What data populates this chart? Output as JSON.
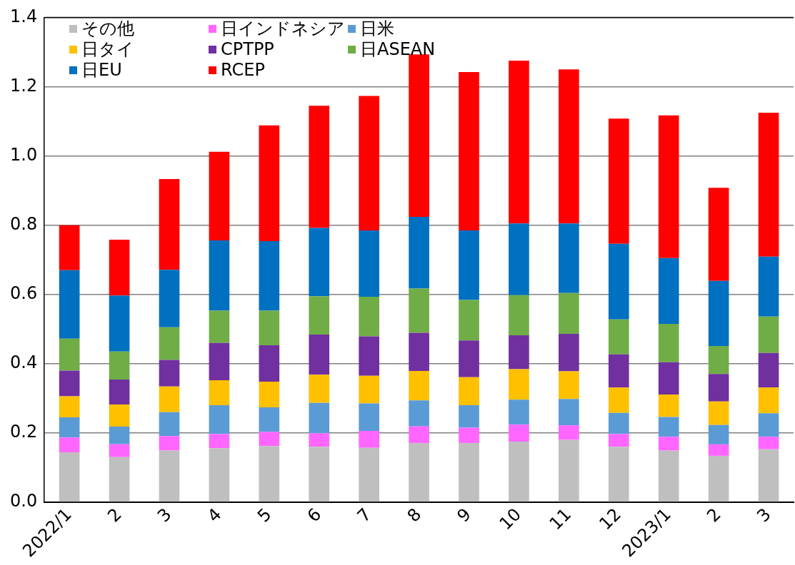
{
  "chart_data": {
    "type": "bar",
    "stacked": true,
    "categories": [
      "2022/1",
      "2",
      "3",
      "4",
      "5",
      "6",
      "7",
      "8",
      "9",
      "10",
      "11",
      "12",
      "2023/1",
      "2",
      "3"
    ],
    "series": [
      {
        "name": "その他",
        "color": "#bfbfbf",
        "values": [
          0.144,
          0.13,
          0.149,
          0.156,
          0.162,
          0.16,
          0.157,
          0.171,
          0.171,
          0.175,
          0.18,
          0.16,
          0.149,
          0.134,
          0.153
        ]
      },
      {
        "name": "日インドネシア",
        "color": "#ff66ff",
        "values": [
          0.043,
          0.037,
          0.042,
          0.041,
          0.041,
          0.039,
          0.049,
          0.048,
          0.044,
          0.049,
          0.042,
          0.037,
          0.04,
          0.033,
          0.036
        ]
      },
      {
        "name": "日米",
        "color": "#5b9bd5",
        "values": [
          0.058,
          0.051,
          0.069,
          0.083,
          0.071,
          0.088,
          0.079,
          0.075,
          0.065,
          0.072,
          0.076,
          0.061,
          0.057,
          0.056,
          0.068
        ]
      },
      {
        "name": "日タイ",
        "color": "#ffc000",
        "values": [
          0.061,
          0.064,
          0.074,
          0.072,
          0.074,
          0.081,
          0.08,
          0.085,
          0.081,
          0.088,
          0.08,
          0.073,
          0.065,
          0.068,
          0.074
        ]
      },
      {
        "name": "CPTPP",
        "color": "#7030a0",
        "values": [
          0.074,
          0.072,
          0.077,
          0.108,
          0.105,
          0.116,
          0.114,
          0.11,
          0.106,
          0.098,
          0.108,
          0.096,
          0.093,
          0.079,
          0.1
        ]
      },
      {
        "name": "日ASEAN",
        "color": "#70ad47",
        "values": [
          0.092,
          0.081,
          0.094,
          0.093,
          0.1,
          0.111,
          0.114,
          0.128,
          0.117,
          0.116,
          0.118,
          0.101,
          0.111,
          0.081,
          0.105
        ]
      },
      {
        "name": "日EU",
        "color": "#0070c0",
        "values": [
          0.198,
          0.162,
          0.166,
          0.203,
          0.201,
          0.197,
          0.192,
          0.207,
          0.201,
          0.207,
          0.201,
          0.218,
          0.19,
          0.188,
          0.173
        ]
      },
      {
        "name": "RCEP",
        "color": "#ff0000",
        "values": [
          0.13,
          0.161,
          0.262,
          0.256,
          0.334,
          0.353,
          0.388,
          0.469,
          0.457,
          0.47,
          0.445,
          0.362,
          0.412,
          0.269,
          0.416
        ]
      }
    ],
    "ylim": [
      0,
      1.4
    ],
    "yticks": [
      {
        "value": 0,
        "label": "0.0"
      },
      {
        "value": 0.2,
        "label": "0.2"
      },
      {
        "value": 0.4,
        "label": "0.4"
      },
      {
        "value": 0.6,
        "label": "0.6"
      },
      {
        "value": 0.8,
        "label": "0.8"
      },
      {
        "value": 1.0,
        "label": "1.0"
      },
      {
        "value": 1.2,
        "label": "1.2"
      },
      {
        "value": 1.4,
        "label": "1.4"
      }
    ],
    "grid": "y",
    "legend": "top left"
  }
}
